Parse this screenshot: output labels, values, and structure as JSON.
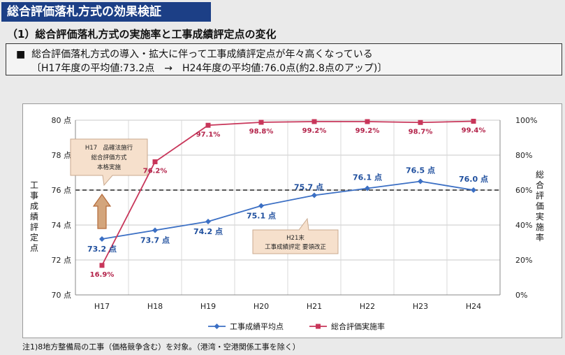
{
  "header": {
    "title": "総合評価落札方式の効果検証"
  },
  "section": {
    "subtitle": "（1）総合評価落札方式の実施率と工事成績評定点の変化"
  },
  "summary": {
    "bullet": "■",
    "line1": "総合評価落札方式の導入・拡大に伴って工事成績評定点が年々高くなっている",
    "line2": "〔H17年度の平均値:73.2点　→　H24年度の平均値:76.0点(約2.8点のアップ)〕"
  },
  "footnote": "注1)8地方整備局の工事（価格競争含む）を対象。（港湾・空港関係工事を除く）",
  "colors": {
    "blue": "#3b6fc4",
    "red": "#c8365a",
    "title_bg": "#1c3f86",
    "callout": "#f6e0cc",
    "arrow": "#d3a57c"
  },
  "chart_data": {
    "type": "line",
    "categories": [
      "H17",
      "H18",
      "H19",
      "H20",
      "H21",
      "H22",
      "H23",
      "H24"
    ],
    "series": [
      {
        "name": "工事成績平均点",
        "axis": "left",
        "color": "#3b6fc4",
        "values": [
          73.2,
          73.7,
          74.2,
          75.1,
          75.7,
          76.1,
          76.5,
          76.0
        ],
        "labels": [
          "73.2 点",
          "73.7 点",
          "74.2 点",
          "75.1 点",
          "75.7 点",
          "76.1 点",
          "76.5 点",
          "76.0 点"
        ]
      },
      {
        "name": "総合評価実施率",
        "axis": "right",
        "color": "#c8365a",
        "values": [
          16.9,
          76.2,
          97.1,
          98.8,
          99.2,
          99.2,
          98.7,
          99.4
        ],
        "labels": [
          "16.9%",
          "76.2%",
          "97.1%",
          "98.8%",
          "99.2%",
          "99.2%",
          "98.7%",
          "99.4%"
        ]
      }
    ],
    "left_axis": {
      "min": 70,
      "max": 80,
      "ticks": [
        70,
        72,
        74,
        76,
        78,
        80
      ],
      "tick_labels": [
        "70 点",
        "72 点",
        "74 点",
        "76 点",
        "78 点",
        "80 点"
      ],
      "label": "工事成績評定点"
    },
    "right_axis": {
      "min": 0,
      "max": 100,
      "ticks": [
        0,
        20,
        40,
        60,
        80,
        100
      ],
      "tick_labels": [
        "0%",
        "20%",
        "40%",
        "60%",
        "80%",
        "100%"
      ],
      "label": "総合評価実施率"
    },
    "reference_line": {
      "value": 76,
      "style": "dashed"
    },
    "annotations": [
      {
        "text_lines": [
          "H17　品確法施行",
          "総合評価方式",
          "本格実施"
        ]
      },
      {
        "text_lines": [
          "H21末",
          "工事成績評定 要領改正"
        ]
      }
    ],
    "legend_position": "bottom",
    "grid": true
  }
}
